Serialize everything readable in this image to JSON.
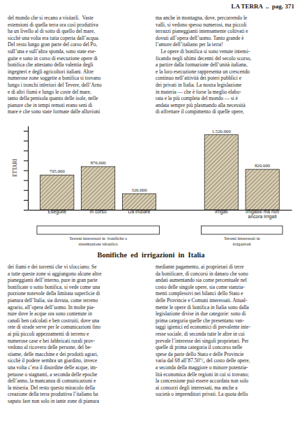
{
  "header": "LA TERRA  ..  pag. 371",
  "text_columns": [
    "del mondo che si recano a visitarli.  Vaste\nestensioni di quella terra ora così produttiva\nha un livello al di sotto di quello del mare,\nsicchè una volta era tutta coperta dall’acqua.\nDel resto lungo gran parte del corso del Po,\nsull’una e sull’altra sponda, sono state ese-\nguite e sono in corso di esecuzione opere di\nbonifica che attestano della valentia degli\ningegneri e degli agricoltori italiani. Altre\nnumerose zone soggette a bonifica si trovano\nlungo i tronchi inferiori del Tevere, dell’Arno\ne di altri fiumi e lungo le coste del mare,\ntanto della penisola quanto delle isole, nelle\npianure che in tempi remoti erano seni di\nmare e che sono state formate dalle alluvioni",
    "ma anche in montagna, dove, percorrendo le\nvalli, si vedono spesso numerosi, ma piccoli\nterrazzi pianeggianti intensamente coltivati e\ndovuti all’opera dell’uomo. Tanto grande è\nl’amore dell’italiano per la terra!\n    Le opere di bonifica si sono venute intensi-\nficando negli ultimi decenni del secolo scorso,\na partire dalla formazione dell’unità italiana,\ne la loro esecuzione rappresenta un crescendo\ncontinuo nell’attività dei poteri pubblici e\ndei privati in Italia. La nostra legislazione\nin materia — che è forse la meglio elabo-\nrata e la più completa del mondo — si è\nandata sempre più plasmando alla necessità\ndi affrettare il compimento di quelle opere,",
    "dei fiumi e dei torrenti che vi sfocciano. Se\na tutte queste zone si aggiungono alcune altre\npianeggianti dell’interno, pure in gran parte\nbonificate o sotto bonifica, si vede come una\nporzione notevole della limitata superficie di\npianura dell’Italia, sia dovuta, come terreno\nagrario, all’opera dell’uomo. In molte pia-\nnure dove le acque ora sono contenute in\ncanali ben calcolati e ben costruiti, dove una\nrete di strade serve per le comunicazioni fino\nai più piccoli appezzamenti di terreno e\nnumerose case e bei fabbricati rurali prov-\nvedono al ricovero delle persone, del be-\nstiame, delle macchine e dei prodotti agrari,\nsicchè il podere sembra un giardino, invece\nuna volta c’era il disordine delle acque, im-\npetuose o stagnanti, a seconda delle epoche\ndell’anno, la mancanza di comunicazioni e\nla miseria. Del resto questo miracolo della\ncreazione della terra produttiva l’italiano ha\nsaputo fare non solo in tante zone di pianura",
    "mediante pagamento, ai proprietari di terre\nda bonificare, di concorsi in danaro che sono\nandati aumentando sia come percentuale nel\ncosto delle singole opere, sia come stanzia-\nmenti complessivi nei bilanci dello Stato e\ndelle Provincie e Comuni interessati. Attual-\nmente le opere di bonifica in Italia sono dalla\nlegislazione divise in due categorie: sono di\nprima categoria quelle che presentano van-\ntaggi igienici ed economici di prevalente inte-\nresse sociale, di seconda tutte le altre in cui\nprevale l’interesse dei singoli proprietari. Per\nquelle di prima categoria il concorso nelle\nspese da parte dello Stato e delle Provincie\nvaria dal 68 all’87.50°/₀ del costo delle opere,\na seconda della maggiore o minore potenzia-\nlità economica delle regioni in cui si trovano;\nla concessione può essere accordata non solo\nai consorzi degli interessati, ma anche a\nsocietà o imprenditori privati. La quota dello"
  ],
  "chart_data": {
    "type": "bar",
    "title": "Bonifiche  ed  irrigazioni  in  Italia",
    "ylabel": "ETTARI",
    "categories": [
      "Eseguite",
      "In corso",
      "Da iniziare",
      "Irrigati",
      "Irrigabili ma non\nancora irrigati"
    ],
    "values": [
      705000,
      876000,
      326000,
      1520000,
      820000
    ],
    "value_labels": [
      "705.000",
      "876.000",
      "326.000",
      "1.520.000",
      "820.000"
    ],
    "data_labels": true,
    "groups": [
      0,
      0,
      0,
      1,
      1
    ],
    "group_labels": [
      "Terreni interessati in  bonifiche a\nsistemazione idraulica",
      "Terreni interessati in\nirrigazioni"
    ],
    "color": "#d8cdb0",
    "ylim": [
      0,
      1700000
    ],
    "yticks": [
      0,
      200000,
      400000,
      600000,
      800000,
      1000000,
      1200000,
      1400000,
      1600000
    ],
    "tick_labels": "x"
  }
}
